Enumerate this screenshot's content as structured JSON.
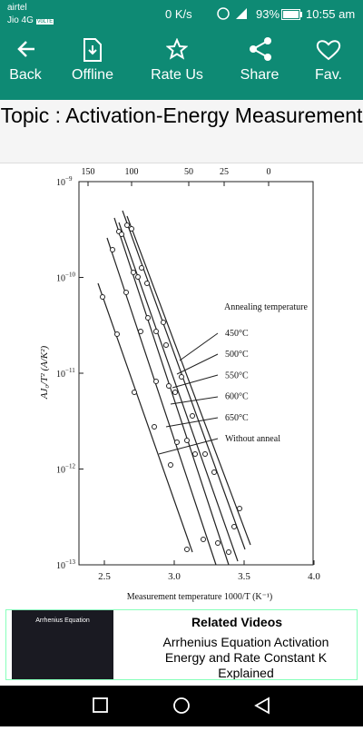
{
  "status_bar": {
    "carrier": "airtel",
    "network": "Jio 4G",
    "volte": "VoLTE",
    "speed": "0 K/s",
    "battery": "93%",
    "time": "10:55 am"
  },
  "toolbar": {
    "items": [
      "Back",
      "Offline",
      "Rate Us",
      "Share",
      "Fav."
    ]
  },
  "topic": {
    "title": "Topic : Activation-Energy Measurement"
  },
  "figure": {
    "y_label": "AJ₀/T² (A/K²)",
    "x_label": "Measurement temperature 1000/T (K⁻¹)",
    "top_ticks": [
      "150",
      "100",
      "50",
      "25",
      "0"
    ],
    "bottom_ticks": [
      "2.5",
      "3.0",
      "3.5",
      "4.0"
    ],
    "y_ticks": [
      {
        "base": "10",
        "exp": "−9"
      },
      {
        "base": "10",
        "exp": "−10"
      },
      {
        "base": "10",
        "exp": "−11"
      },
      {
        "base": "10",
        "exp": "−12"
      },
      {
        "base": "10",
        "exp": "−13"
      }
    ],
    "legend_title": "Annealing temperature",
    "legend": [
      "450°C",
      "500°C",
      "550°C",
      "600°C",
      "650°C",
      "Without anneal"
    ]
  },
  "related": {
    "heading": "Related Videos",
    "thumbnail_text": "Arrhenius Equation",
    "video_title": "Arrhenius Equation Activation Energy and Rate Constant K Explained"
  }
}
